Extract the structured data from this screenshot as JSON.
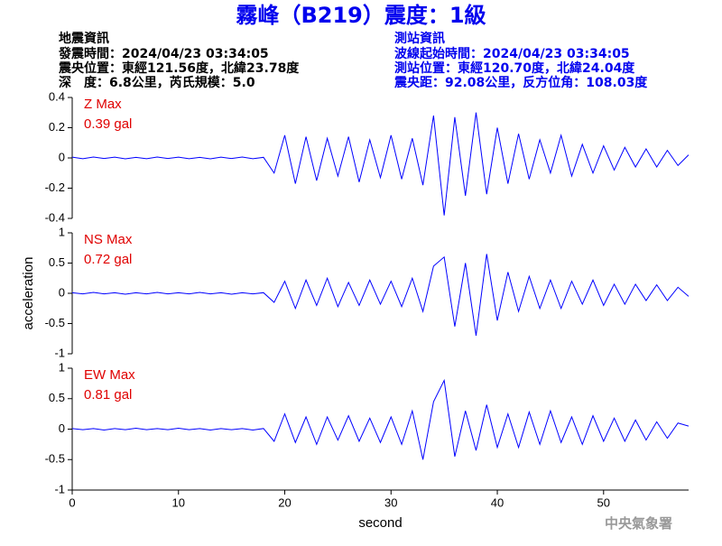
{
  "title": "霧峰（B219）震度：1級",
  "info_left": [
    "地震資訊",
    "發震時間：2024/04/23 03:34:05",
    "震央位置：東經121.56度，北緯23.78度",
    "深　度：6.8公里，芮氏規模：5.0"
  ],
  "info_right": [
    "測站資訊",
    "波線起始時間：2024/04/23 03:34:05",
    "測站位置：東經120.70度，北緯24.04度",
    "震央距：92.08公里，反方位角：108.03度"
  ],
  "footer": "中央氣象署",
  "chart_data": [
    {
      "type": "line",
      "annotations": [
        "Z Max",
        "0.39 gal"
      ],
      "color": "#0000ff",
      "xlim": [
        0,
        58
      ],
      "ylim": [
        -0.4,
        0.4
      ],
      "yticks": [
        -0.4,
        -0.2,
        0,
        0.2,
        0.4
      ],
      "x": [
        0,
        1,
        2,
        3,
        4,
        5,
        6,
        7,
        8,
        9,
        10,
        11,
        12,
        13,
        14,
        15,
        16,
        17,
        18,
        19,
        20,
        21,
        22,
        23,
        24,
        25,
        26,
        27,
        28,
        29,
        30,
        31,
        32,
        33,
        34,
        35,
        36,
        37,
        38,
        39,
        40,
        41,
        42,
        43,
        44,
        45,
        46,
        47,
        48,
        49,
        50,
        51,
        52,
        53,
        54,
        55,
        56,
        57,
        58
      ],
      "values": [
        0.005,
        -0.005,
        0.006,
        -0.004,
        0.005,
        -0.006,
        0.004,
        -0.005,
        0.006,
        -0.004,
        0.005,
        -0.005,
        0.004,
        -0.006,
        0.005,
        -0.004,
        0.006,
        -0.005,
        0.004,
        -0.1,
        0.15,
        -0.17,
        0.14,
        -0.15,
        0.13,
        -0.12,
        0.14,
        -0.16,
        0.12,
        -0.13,
        0.15,
        -0.14,
        0.13,
        -0.18,
        0.28,
        -0.38,
        0.27,
        -0.25,
        0.3,
        -0.24,
        0.2,
        -0.17,
        0.16,
        -0.14,
        0.12,
        -0.1,
        0.15,
        -0.12,
        0.09,
        -0.1,
        0.08,
        -0.08,
        0.07,
        -0.06,
        0.06,
        -0.06,
        0.05,
        -0.05,
        0.02
      ]
    },
    {
      "type": "line",
      "annotations": [
        "NS Max",
        "0.72 gal"
      ],
      "ylabel": "acceleration",
      "color": "#0000ff",
      "xlim": [
        0,
        58
      ],
      "ylim": [
        -1,
        1
      ],
      "yticks": [
        -1,
        -0.5,
        0,
        0.5,
        1
      ],
      "x": [
        0,
        1,
        2,
        3,
        4,
        5,
        6,
        7,
        8,
        9,
        10,
        11,
        12,
        13,
        14,
        15,
        16,
        17,
        18,
        19,
        20,
        21,
        22,
        23,
        24,
        25,
        26,
        27,
        28,
        29,
        30,
        31,
        32,
        33,
        34,
        35,
        36,
        37,
        38,
        39,
        40,
        41,
        42,
        43,
        44,
        45,
        46,
        47,
        48,
        49,
        50,
        51,
        52,
        53,
        54,
        55,
        56,
        57,
        58
      ],
      "values": [
        0.01,
        -0.01,
        0.015,
        -0.01,
        0.01,
        -0.015,
        0.01,
        -0.01,
        0.015,
        -0.01,
        0.01,
        -0.01,
        0.015,
        -0.01,
        0.01,
        -0.015,
        0.01,
        -0.01,
        0.01,
        -0.15,
        0.2,
        -0.25,
        0.22,
        -0.2,
        0.25,
        -0.22,
        0.18,
        -0.2,
        0.22,
        -0.18,
        0.2,
        -0.22,
        0.25,
        -0.3,
        0.45,
        0.6,
        -0.55,
        0.5,
        -0.7,
        0.65,
        -0.45,
        0.35,
        -0.3,
        0.28,
        -0.25,
        0.22,
        -0.25,
        0.2,
        -0.18,
        0.22,
        -0.2,
        0.15,
        -0.18,
        0.15,
        -0.12,
        0.14,
        -0.12,
        0.1,
        -0.05
      ]
    },
    {
      "type": "line",
      "annotations": [
        "EW Max",
        "0.81 gal"
      ],
      "xlabel": "second",
      "color": "#0000ff",
      "xlim": [
        0,
        58
      ],
      "ylim": [
        -1,
        1
      ],
      "yticks": [
        -1,
        -0.5,
        0,
        0.5,
        1
      ],
      "xticks": [
        0,
        10,
        20,
        30,
        40,
        50
      ],
      "x": [
        0,
        1,
        2,
        3,
        4,
        5,
        6,
        7,
        8,
        9,
        10,
        11,
        12,
        13,
        14,
        15,
        16,
        17,
        18,
        19,
        20,
        21,
        22,
        23,
        24,
        25,
        26,
        27,
        28,
        29,
        30,
        31,
        32,
        33,
        34,
        35,
        36,
        37,
        38,
        39,
        40,
        41,
        42,
        43,
        44,
        45,
        46,
        47,
        48,
        49,
        50,
        51,
        52,
        53,
        54,
        55,
        56,
        57,
        58
      ],
      "values": [
        0.01,
        -0.01,
        0.01,
        -0.015,
        0.01,
        -0.01,
        0.015,
        -0.01,
        0.01,
        -0.01,
        0.015,
        -0.01,
        0.01,
        -0.015,
        0.01,
        -0.01,
        0.01,
        -0.015,
        0.01,
        -0.2,
        0.25,
        -0.22,
        0.2,
        -0.25,
        0.2,
        -0.18,
        0.22,
        -0.2,
        0.18,
        -0.22,
        0.2,
        -0.25,
        0.3,
        -0.5,
        0.45,
        0.8,
        -0.45,
        0.3,
        -0.35,
        0.4,
        -0.3,
        0.25,
        -0.3,
        0.28,
        -0.25,
        0.3,
        -0.22,
        0.2,
        -0.25,
        0.22,
        -0.2,
        0.18,
        -0.2,
        0.15,
        -0.18,
        0.12,
        -0.15,
        0.1,
        0.05
      ]
    }
  ]
}
